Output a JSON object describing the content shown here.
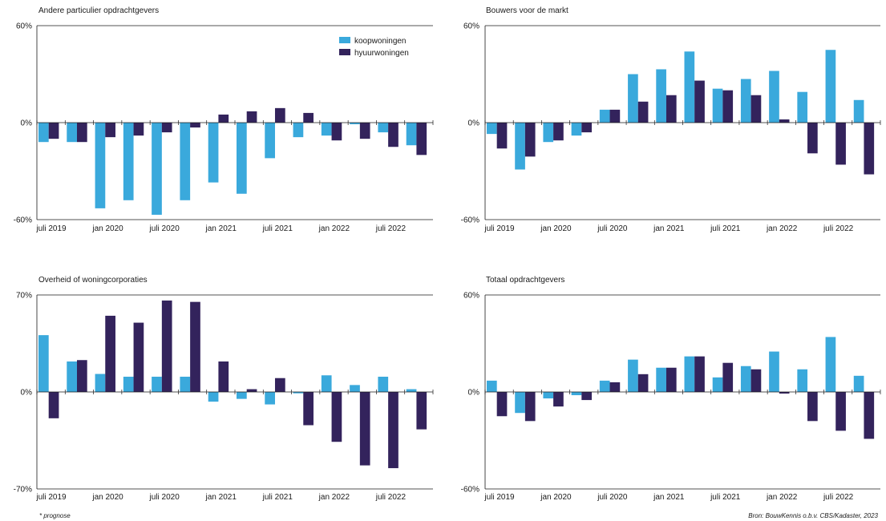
{
  "colors": {
    "koop": "#3aa9dc",
    "huur": "#33235c",
    "axis": "#1a1a1a"
  },
  "legend": {
    "koop": "koopwoningen",
    "huur": "hyuurwoningen"
  },
  "footnotes": {
    "left": "* prognose",
    "right": "Bron: BouwKennis o.b.v. CBS/Kadaster, 2023"
  },
  "chart_data": [
    {
      "type": "bar",
      "title": "Andere particulier opdrachtgevers",
      "ylim": [
        -60,
        60
      ],
      "yticks": [
        "60%",
        "0%",
        "-60%"
      ],
      "xlabels": [
        "juli 2019",
        "jan 2020",
        "juli 2020",
        "jan 2021",
        "juli 2021",
        "jan 2022",
        "juli 2022"
      ],
      "categories": [
        "Q3 2019",
        "Q4 2019",
        "Q1 2020",
        "Q2 2020",
        "Q3 2020",
        "Q4 2020",
        "Q1 2021",
        "Q2 2021",
        "Q3 2021",
        "Q4 2021",
        "Q1 2022",
        "Q2 2022",
        "Q3 2022",
        "Q4 2022"
      ],
      "series": [
        {
          "name": "koopwoningen",
          "values": [
            -12,
            -12,
            -53,
            -48,
            -57,
            -48,
            -37,
            -44,
            -22,
            -9,
            -8,
            -1,
            -6,
            -14
          ]
        },
        {
          "name": "hyuurwoningen",
          "values": [
            -10,
            -12,
            -9,
            -8,
            -6,
            -3,
            5,
            7,
            9,
            6,
            -11,
            -10,
            -15,
            -20
          ]
        }
      ],
      "legend": "top-right"
    },
    {
      "type": "bar",
      "title": "Bouwers voor de markt",
      "ylim": [
        -60,
        60
      ],
      "yticks": [
        "60%",
        "0%",
        "-60%"
      ],
      "xlabels": [
        "juli 2019",
        "jan 2020",
        "juli 2020",
        "jan 2021",
        "juli 2021",
        "jan 2022",
        "juli 2022"
      ],
      "categories": [
        "Q3 2019",
        "Q4 2019",
        "Q1 2020",
        "Q2 2020",
        "Q3 2020",
        "Q4 2020",
        "Q1 2021",
        "Q2 2021",
        "Q3 2021",
        "Q4 2021",
        "Q1 2022",
        "Q2 2022",
        "Q3 2022",
        "Q4 2022"
      ],
      "series": [
        {
          "name": "koopwoningen",
          "values": [
            -7,
            -29,
            -12,
            -8,
            8,
            30,
            33,
            44,
            21,
            27,
            32,
            19,
            45,
            14
          ]
        },
        {
          "name": "hyuurwoningen",
          "values": [
            -16,
            -21,
            -11,
            -6,
            8,
            13,
            17,
            26,
            20,
            17,
            2,
            -19,
            -26,
            -32
          ]
        }
      ]
    },
    {
      "type": "bar",
      "title": "Overheid of woningcorporaties",
      "ylim": [
        -70,
        70
      ],
      "yticks": [
        "70%",
        "0%",
        "-70%"
      ],
      "xlabels": [
        "juli 2019",
        "jan 2020",
        "juli 2020",
        "jan 2021",
        "juli 2021",
        "jan 2022",
        "juli 2022"
      ],
      "categories": [
        "Q3 2019",
        "Q4 2019",
        "Q1 2020",
        "Q2 2020",
        "Q3 2020",
        "Q4 2020",
        "Q1 2021",
        "Q2 2021",
        "Q3 2021",
        "Q4 2021",
        "Q1 2022",
        "Q2 2022",
        "Q3 2022",
        "Q4 2022"
      ],
      "series": [
        {
          "name": "koopwoningen",
          "values": [
            41,
            22,
            13,
            11,
            11,
            11,
            -7,
            -5,
            -9,
            -1,
            12,
            5,
            11,
            2
          ]
        },
        {
          "name": "hyuurwoningen",
          "values": [
            -19,
            23,
            55,
            50,
            66,
            65,
            22,
            2,
            10,
            -24,
            -36,
            -53,
            -55,
            -27
          ]
        }
      ]
    },
    {
      "type": "bar",
      "title": "Totaal opdrachtgevers",
      "ylim": [
        -60,
        60
      ],
      "yticks": [
        "60%",
        "0%",
        "-60%"
      ],
      "xlabels": [
        "juli 2019",
        "jan 2020",
        "juli 2020",
        "jan 2021",
        "juli 2021",
        "jan 2022",
        "juli 2022"
      ],
      "categories": [
        "Q3 2019",
        "Q4 2019",
        "Q1 2020",
        "Q2 2020",
        "Q3 2020",
        "Q4 2020",
        "Q1 2021",
        "Q2 2021",
        "Q3 2021",
        "Q4 2021",
        "Q1 2022",
        "Q2 2022",
        "Q3 2022",
        "Q4 2022"
      ],
      "series": [
        {
          "name": "koopwoningen",
          "values": [
            7,
            -13,
            -4,
            -2,
            7,
            20,
            15,
            22,
            9,
            16,
            25,
            14,
            34,
            10
          ]
        },
        {
          "name": "hyuurwoningen",
          "values": [
            -15,
            -18,
            -9,
            -5,
            6,
            11,
            15,
            22,
            18,
            14,
            -1,
            -18,
            -24,
            -29
          ]
        }
      ]
    }
  ]
}
